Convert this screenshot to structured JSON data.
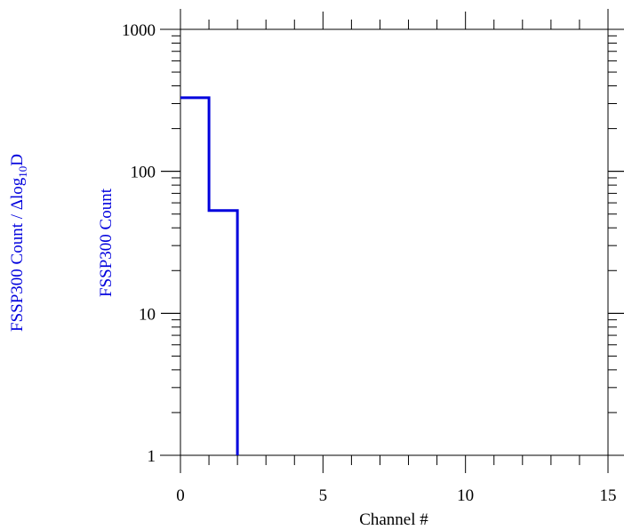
{
  "chart_data": {
    "type": "line",
    "step": true,
    "title": "",
    "xlabel": "Channel #",
    "ylabel_outer": "FSSP300 Count / Δlog₁₀D",
    "ylabel_outer_parts": {
      "prefix": "FSSP300 Count / Δlog",
      "subscript": "10",
      "suffix": "D"
    },
    "ylabel": "FSSP300 Count",
    "xlim": [
      0,
      15
    ],
    "ylim": [
      1,
      1000
    ],
    "yscale": "log",
    "grid": false,
    "x_ticks": [
      0,
      5,
      10,
      15
    ],
    "x_tick_labels": [
      "0",
      "5",
      "10",
      "15"
    ],
    "y_ticks": [
      1,
      10,
      100,
      1000
    ],
    "y_tick_labels": [
      "1",
      "10",
      "100",
      "1000"
    ],
    "series": [
      {
        "color": "#0000dd",
        "points": [
          {
            "x": 0,
            "y": 330
          },
          {
            "x": 1,
            "y": 330
          },
          {
            "x": 1,
            "y": 53
          },
          {
            "x": 2,
            "y": 53
          },
          {
            "x": 2,
            "y": 1
          }
        ]
      }
    ]
  },
  "colors": {
    "series": "#0000dd",
    "axes": "#000000",
    "label_blue": "#0000dd"
  }
}
